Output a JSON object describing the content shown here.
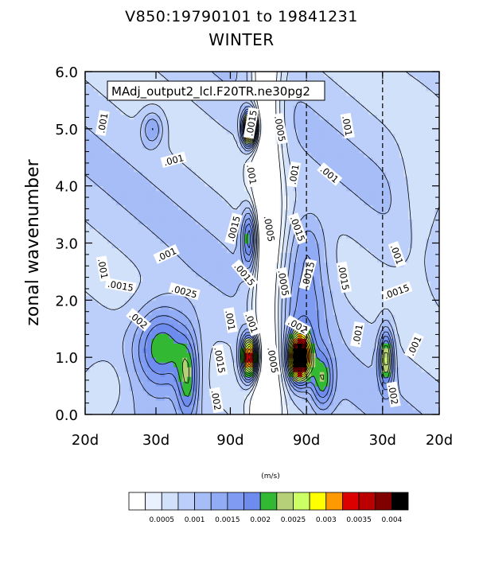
{
  "chart_data": {
    "type": "contour",
    "title_line1": "V850:19790101 to 19841231",
    "title_line2": "WINTER",
    "plot_label": "MAdj_output2_lcl.F20TR.ne30pg2",
    "ylabel": "zonal wavenumber",
    "ylim": [
      0,
      6
    ],
    "yticks": [
      "0.0",
      "1.0",
      "2.0",
      "3.0",
      "4.0",
      "5.0",
      "6.0"
    ],
    "xtick_labels": [
      "20d",
      "30d",
      "90d",
      "90d",
      "30d",
      "20d"
    ],
    "units_label": "(m/s)",
    "colorbar": {
      "colors": [
        "#ffffff",
        "#e8f1fd",
        "#d2e1fa",
        "#bccffa",
        "#a6bdf7",
        "#91acf4",
        "#7f9cf2",
        "#6d8cee",
        "#33b833",
        "#b6d07a",
        "#ccff66",
        "#ffff00",
        "#ff9900",
        "#dd0000",
        "#bb0000",
        "#800000",
        "#000000"
      ],
      "labels": [
        "0.0005",
        "0.001",
        "0.0015",
        "0.002",
        "0.0025",
        "0.003",
        "0.0035",
        "0.004"
      ]
    },
    "contour_labels": [
      {
        "text": ".001",
        "x": 0.05,
        "y": 5.1,
        "rot": -80
      },
      {
        "text": ".0015",
        "x": 0.47,
        "y": 5.1,
        "rot": -80
      },
      {
        "text": ".0005",
        "x": 0.55,
        "y": 5.0,
        "rot": 80
      },
      {
        "text": ".001",
        "x": 0.74,
        "y": 5.05,
        "rot": 80
      },
      {
        "text": ".001",
        "x": 0.25,
        "y": 4.45,
        "rot": -15
      },
      {
        "text": ".001",
        "x": 0.47,
        "y": 4.2,
        "rot": 80
      },
      {
        "text": ".001",
        "x": 0.59,
        "y": 4.2,
        "rot": -80
      },
      {
        "text": ".001",
        "x": 0.69,
        "y": 4.2,
        "rot": 40
      },
      {
        "text": ".0015",
        "x": 0.42,
        "y": 3.25,
        "rot": -75
      },
      {
        "text": ".0005",
        "x": 0.52,
        "y": 3.25,
        "rot": 80
      },
      {
        "text": ".0015",
        "x": 0.6,
        "y": 3.25,
        "rot": 70
      },
      {
        "text": ".001",
        "x": 0.23,
        "y": 2.8,
        "rot": -25
      },
      {
        "text": ".001",
        "x": 0.05,
        "y": 2.55,
        "rot": 80
      },
      {
        "text": ".0015",
        "x": 0.45,
        "y": 2.45,
        "rot": 50
      },
      {
        "text": ".0015",
        "x": 0.63,
        "y": 2.45,
        "rot": -75
      },
      {
        "text": ".0015",
        "x": 0.73,
        "y": 2.4,
        "rot": 80
      },
      {
        "text": ".001",
        "x": 0.88,
        "y": 2.8,
        "rot": 70
      },
      {
        "text": ".0015",
        "x": 0.1,
        "y": 2.25,
        "rot": 10
      },
      {
        "text": ".0025",
        "x": 0.28,
        "y": 2.15,
        "rot": 15
      },
      {
        "text": ".0005",
        "x": 0.56,
        "y": 2.3,
        "rot": 80
      },
      {
        "text": ".0015",
        "x": 0.88,
        "y": 2.15,
        "rot": -20
      },
      {
        "text": ".002",
        "x": 0.15,
        "y": 1.65,
        "rot": 40
      },
      {
        "text": ".001",
        "x": 0.41,
        "y": 1.65,
        "rot": 80
      },
      {
        "text": ".001",
        "x": 0.47,
        "y": 1.6,
        "rot": 70
      },
      {
        "text": ".002",
        "x": 0.6,
        "y": 1.55,
        "rot": 30
      },
      {
        "text": ".001",
        "x": 0.77,
        "y": 1.4,
        "rot": -80
      },
      {
        "text": ".001",
        "x": 0.93,
        "y": 1.2,
        "rot": -65
      },
      {
        "text": ".0015",
        "x": 0.38,
        "y": 0.95,
        "rot": 80
      },
      {
        "text": ".0005",
        "x": 0.53,
        "y": 0.95,
        "rot": 80
      },
      {
        "text": ".002",
        "x": 0.37,
        "y": 0.25,
        "rot": 80
      },
      {
        "text": ".002",
        "x": 0.87,
        "y": 0.35,
        "rot": 80
      }
    ]
  }
}
